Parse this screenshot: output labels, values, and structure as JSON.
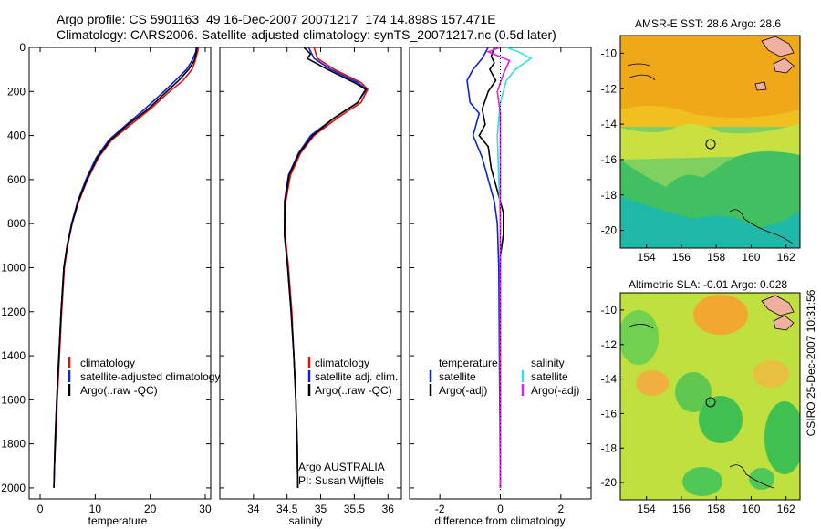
{
  "header": {
    "line1": "Argo profile: CS 5901163_49 16-Dec-2007 20071217_174 14.898S 157.471E",
    "line2": "Climatology: CARS2006. Satellite-adjusted climatology: synTS_20071217.nc (0.5d later)"
  },
  "colors": {
    "climatology": "#e01010",
    "satellite": "#1020e0",
    "argo": "#000000",
    "salinity_satellite": "#30e0e0",
    "salinity_argo": "#e020e0"
  },
  "chart_data": [
    {
      "type": "line",
      "name": "temperature-profile",
      "xlabel": "temperature",
      "xlim": [
        -2,
        31
      ],
      "ylim": [
        0,
        2050
      ],
      "xticks": [
        0,
        10,
        20,
        30
      ],
      "yticks": [
        0,
        200,
        400,
        600,
        800,
        1000,
        1200,
        1400,
        1600,
        1800,
        2000
      ],
      "legend": [
        "climatology",
        "satellite-adjusted climatology",
        "Argo(..raw -QC)"
      ],
      "series": [
        {
          "name": "climatology",
          "color": "#e01010",
          "points": [
            [
              28.8,
              0
            ],
            [
              28.6,
              20
            ],
            [
              28.2,
              60
            ],
            [
              27.6,
              100
            ],
            [
              26.0,
              150
            ],
            [
              23.5,
              200
            ],
            [
              20.0,
              280
            ],
            [
              16.5,
              350
            ],
            [
              13.0,
              420
            ],
            [
              10.6,
              500
            ],
            [
              8.6,
              600
            ],
            [
              7.0,
              700
            ],
            [
              5.8,
              800
            ],
            [
              5.0,
              900
            ],
            [
              4.4,
              1000
            ],
            [
              3.9,
              1200
            ],
            [
              3.5,
              1400
            ],
            [
              3.1,
              1600
            ],
            [
              2.8,
              1800
            ],
            [
              2.6,
              1900
            ]
          ]
        },
        {
          "name": "satellite-adjusted climatology",
          "color": "#1020e0",
          "points": [
            [
              28.4,
              0
            ],
            [
              28.3,
              20
            ],
            [
              27.6,
              60
            ],
            [
              26.6,
              100
            ],
            [
              24.6,
              150
            ],
            [
              22.5,
              200
            ],
            [
              19.0,
              280
            ],
            [
              15.7,
              350
            ],
            [
              12.5,
              420
            ],
            [
              10.2,
              500
            ],
            [
              8.3,
              600
            ],
            [
              6.8,
              700
            ],
            [
              5.7,
              800
            ],
            [
              4.9,
              900
            ],
            [
              4.3,
              1000
            ],
            [
              3.8,
              1200
            ],
            [
              3.4,
              1400
            ],
            [
              3.0,
              1600
            ],
            [
              2.7,
              1800
            ],
            [
              2.5,
              2000
            ]
          ]
        },
        {
          "name": "Argo(..raw -QC)",
          "color": "#000000",
          "points": [
            [
              28.5,
              0
            ],
            [
              28.4,
              20
            ],
            [
              28.0,
              60
            ],
            [
              27.0,
              100
            ],
            [
              25.2,
              150
            ],
            [
              23.0,
              200
            ],
            [
              19.6,
              280
            ],
            [
              16.0,
              350
            ],
            [
              12.8,
              420
            ],
            [
              10.4,
              500
            ],
            [
              8.5,
              600
            ],
            [
              6.9,
              700
            ],
            [
              5.8,
              800
            ],
            [
              4.9,
              900
            ],
            [
              4.3,
              1000
            ],
            [
              3.8,
              1200
            ],
            [
              3.4,
              1400
            ],
            [
              3.0,
              1600
            ],
            [
              2.7,
              1800
            ],
            [
              2.5,
              2000
            ]
          ]
        }
      ]
    },
    {
      "type": "line",
      "name": "salinity-profile",
      "xlabel": "salinity",
      "xlim": [
        33.5,
        36.2
      ],
      "ylim": [
        0,
        2050
      ],
      "xticks": [
        34,
        34.5,
        35,
        35.5,
        36
      ],
      "legend": [
        "climatology",
        "satellite adj. clim.",
        "Argo(..raw -QC)"
      ],
      "annotation": [
        "Argo AUSTRALIA",
        "PI: Susan Wijffels"
      ],
      "series": [
        {
          "name": "climatology",
          "color": "#e01010",
          "points": [
            [
              34.9,
              0
            ],
            [
              34.95,
              50
            ],
            [
              35.2,
              100
            ],
            [
              35.6,
              160
            ],
            [
              35.7,
              190
            ],
            [
              35.6,
              250
            ],
            [
              35.25,
              320
            ],
            [
              34.9,
              400
            ],
            [
              34.7,
              480
            ],
            [
              34.55,
              580
            ],
            [
              34.48,
              700
            ],
            [
              34.47,
              850
            ],
            [
              34.52,
              1000
            ],
            [
              34.57,
              1200
            ],
            [
              34.6,
              1400
            ],
            [
              34.63,
              1600
            ],
            [
              34.65,
              1800
            ],
            [
              34.66,
              2000
            ]
          ]
        },
        {
          "name": "satellite adj. clim.",
          "color": "#1020e0",
          "points": [
            [
              34.82,
              0
            ],
            [
              34.9,
              50
            ],
            [
              35.15,
              100
            ],
            [
              35.55,
              160
            ],
            [
              35.68,
              190
            ],
            [
              35.55,
              250
            ],
            [
              35.2,
              320
            ],
            [
              34.85,
              400
            ],
            [
              34.67,
              480
            ],
            [
              34.52,
              580
            ],
            [
              34.46,
              700
            ],
            [
              34.46,
              850
            ],
            [
              34.51,
              1000
            ],
            [
              34.56,
              1200
            ],
            [
              34.6,
              1400
            ],
            [
              34.63,
              1600
            ],
            [
              34.65,
              1800
            ],
            [
              34.66,
              2000
            ]
          ]
        },
        {
          "name": "Argo(..raw -QC)",
          "color": "#000000",
          "points": [
            [
              34.75,
              0
            ],
            [
              34.85,
              30
            ],
            [
              34.8,
              50
            ],
            [
              35.1,
              100
            ],
            [
              35.5,
              160
            ],
            [
              35.67,
              190
            ],
            [
              35.55,
              250
            ],
            [
              35.2,
              320
            ],
            [
              34.88,
              400
            ],
            [
              34.68,
              480
            ],
            [
              34.53,
              580
            ],
            [
              34.47,
              700
            ],
            [
              34.46,
              850
            ],
            [
              34.51,
              1000
            ],
            [
              34.56,
              1200
            ],
            [
              34.6,
              1400
            ],
            [
              34.63,
              1600
            ],
            [
              34.65,
              1800
            ],
            [
              34.66,
              2000
            ]
          ]
        }
      ]
    },
    {
      "type": "line",
      "name": "difference-profile",
      "xlabel": "difference from climatology",
      "xlim": [
        -3,
        3
      ],
      "ylim": [
        0,
        2050
      ],
      "xticks": [
        -2,
        0,
        2
      ],
      "legend_temperature": [
        "temperature",
        "satellite",
        "Argo(-adj)"
      ],
      "legend_salinity": [
        "salinity",
        "satellite",
        "Argo(-adj)"
      ],
      "series": [
        {
          "name": "temperature satellite",
          "color": "#1020e0",
          "points": [
            [
              -0.4,
              0
            ],
            [
              -0.6,
              50
            ],
            [
              -0.9,
              100
            ],
            [
              -1.1,
              150
            ],
            [
              -1.0,
              250
            ],
            [
              -0.7,
              300
            ],
            [
              -0.9,
              400
            ],
            [
              -0.6,
              500
            ],
            [
              -0.4,
              600
            ],
            [
              -0.2,
              700
            ],
            [
              -0.1,
              800
            ],
            [
              -0.05,
              1000
            ],
            [
              0,
              2000
            ]
          ]
        },
        {
          "name": "temperature Argo(-adj)",
          "color": "#000000",
          "points": [
            [
              -0.2,
              0
            ],
            [
              -0.3,
              40
            ],
            [
              -0.2,
              70
            ],
            [
              -0.35,
              100
            ],
            [
              -0.15,
              150
            ],
            [
              -0.4,
              200
            ],
            [
              -0.6,
              280
            ],
            [
              -0.5,
              350
            ],
            [
              -0.7,
              400
            ],
            [
              -0.4,
              450
            ],
            [
              -0.3,
              550
            ],
            [
              -0.1,
              650
            ],
            [
              0.1,
              750
            ],
            [
              0.1,
              850
            ],
            [
              0,
              950
            ],
            [
              0,
              2000
            ]
          ]
        },
        {
          "name": "salinity satellite",
          "color": "#30e0e0",
          "points": [
            [
              0.2,
              0
            ],
            [
              0.6,
              20
            ],
            [
              1.0,
              50
            ],
            [
              0.5,
              100
            ],
            [
              0.2,
              150
            ],
            [
              0.0,
              250
            ],
            [
              -0.1,
              400
            ],
            [
              -0.05,
              600
            ],
            [
              0,
              800
            ],
            [
              0,
              2000
            ]
          ]
        },
        {
          "name": "salinity Argo(-adj)",
          "color": "#e020e0",
          "points": [
            [
              0.0,
              0
            ],
            [
              -0.4,
              20
            ],
            [
              0.3,
              60
            ],
            [
              0.1,
              120
            ],
            [
              -0.1,
              200
            ],
            [
              0.0,
              300
            ],
            [
              0,
              2000
            ]
          ]
        }
      ]
    },
    {
      "type": "heatmap",
      "name": "sst-map",
      "title": "AMSR-E SST: 28.6 Argo: 28.6",
      "xlim": [
        152.5,
        162.8
      ],
      "ylim": [
        -21.0,
        -9.0
      ],
      "xticks": [
        154,
        156,
        158,
        160,
        162
      ],
      "yticks": [
        -10,
        -12,
        -14,
        -16,
        -18,
        -20
      ],
      "marker": [
        157.471,
        -14.898
      ]
    },
    {
      "type": "heatmap",
      "name": "sla-map",
      "title": "Altimetric SLA: -0.01 Argo: 0.028",
      "xlim": [
        152.5,
        162.8
      ],
      "ylim": [
        -21.0,
        -9.0
      ],
      "xticks": [
        154,
        156,
        158,
        160,
        162
      ],
      "yticks": [
        -10,
        -12,
        -14,
        -16,
        -18,
        -20
      ],
      "marker": [
        157.471,
        -14.898
      ]
    }
  ],
  "footer": {
    "timestamp": "CSIRO 25-Dec-2007 10:31:56"
  }
}
